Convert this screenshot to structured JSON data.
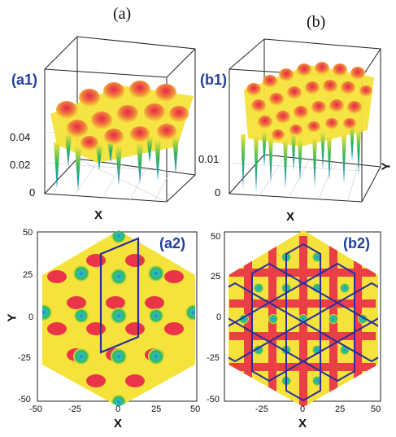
{
  "columns": {
    "a": "(a)",
    "b": "(b)"
  },
  "panels": {
    "a1": {
      "tag": "(a1)",
      "z_ticks": [
        "0.04",
        "0.02",
        "0"
      ],
      "x_label": "X"
    },
    "b1": {
      "tag": "(b1)",
      "z_ticks": [
        "0.01",
        "0"
      ],
      "x_label": "X",
      "y_label": "Y"
    },
    "a2": {
      "tag": "(a2)",
      "y_ticks": [
        "50",
        "25",
        "0",
        "-25",
        "-50"
      ],
      "x_ticks": [
        "-50",
        "-25",
        "0",
        "25",
        "50"
      ],
      "x_label": "X",
      "y_label": "Y"
    },
    "b2": {
      "tag": "(b2)",
      "y_ticks": [
        "50",
        "25",
        "0",
        "-25",
        "-50"
      ],
      "x_ticks": [
        "-25",
        "0",
        "25",
        "50"
      ],
      "x_label": "X"
    }
  },
  "colors": {
    "peak_red": "#e8234a",
    "mid_yellow": "#f5e23a",
    "low_green": "#2fb85a",
    "deep_blue": "#1e7fd6",
    "overlay_line": "#2a2f9a"
  }
}
